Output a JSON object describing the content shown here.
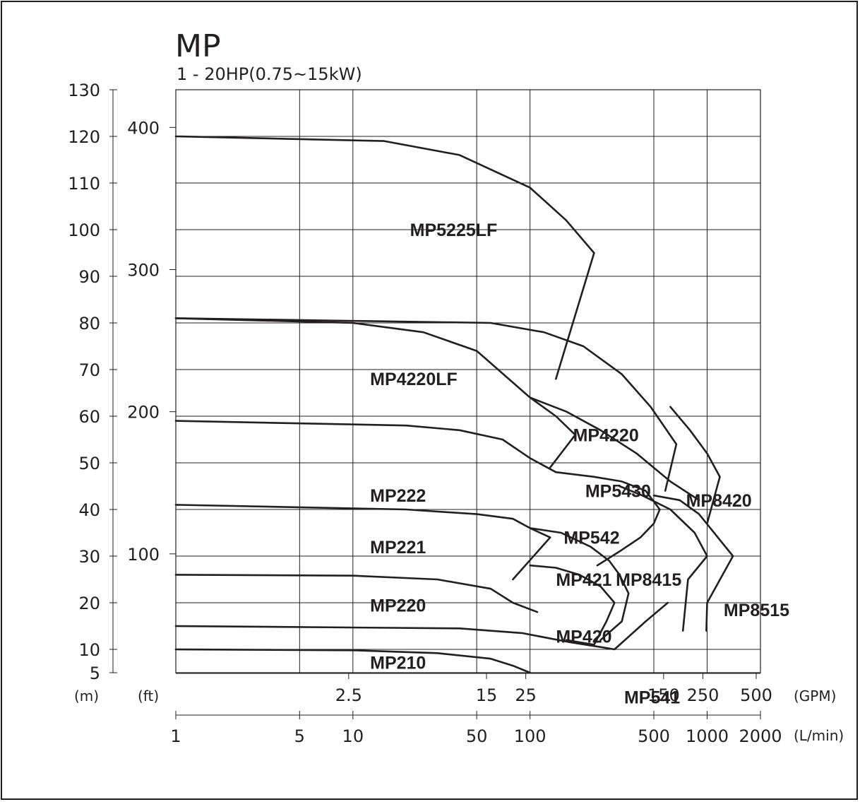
{
  "chart_data": {
    "type": "line",
    "title": "MP",
    "subtitle": "1 - 20HP(0.75~15kW)",
    "y_unit_m": "(m)",
    "y_unit_ft": "(ft)",
    "x_unit_gpm": "(GPM)",
    "x_unit_lmin": "(L/min)",
    "x_scale": "log",
    "grid": true,
    "xlim_lmin": [
      1,
      2000
    ],
    "ylim_m": [
      5,
      130
    ],
    "y_ticks_m": [
      "5",
      "10",
      "20",
      "30",
      "40",
      "50",
      "60",
      "70",
      "80",
      "90",
      "100",
      "110",
      "120",
      "130"
    ],
    "y_ticks_ft": [
      "100",
      "200",
      "300",
      "400"
    ],
    "x_ticks_lmin": [
      "1",
      "5",
      "10",
      "50",
      "100",
      "500",
      "1000",
      "2000"
    ],
    "x_ticks_gpm": [
      "2.5",
      "15",
      "25",
      "150",
      "250",
      "500"
    ],
    "series": [
      {
        "name": "MP5225LF",
        "x": [
          1,
          15,
          40,
          100,
          160,
          230,
          140
        ],
        "y": [
          120,
          119,
          116,
          109,
          102,
          95,
          68
        ]
      },
      {
        "name": "MP4220LF",
        "x": [
          1,
          10,
          25,
          50,
          100,
          140,
          180,
          130
        ],
        "y": [
          81,
          80,
          78,
          74,
          64,
          60,
          56,
          49
        ]
      },
      {
        "name": "MP4220",
        "x": [
          1,
          60,
          120,
          200,
          330,
          480,
          670,
          580
        ],
        "y": [
          81,
          80,
          78,
          75,
          69,
          62,
          54,
          44
        ]
      },
      {
        "name": "MP5430",
        "x": [
          100,
          160,
          250,
          400,
          620,
          900
        ],
        "y": [
          64,
          61,
          57,
          52,
          46,
          42
        ]
      },
      {
        "name": "MP8420",
        "x": [
          620,
          800,
          1000,
          1180,
          1000
        ],
        "y": [
          62,
          57,
          52,
          47,
          37
        ]
      },
      {
        "name": "MP222",
        "x": [
          1,
          20,
          40,
          70,
          100,
          140
        ],
        "y": [
          59,
          58,
          57,
          55,
          51,
          48
        ]
      },
      {
        "name": "MP542",
        "x": [
          140,
          230,
          330,
          450,
          540,
          500,
          420,
          320,
          240
        ],
        "y": [
          48,
          47,
          46,
          44,
          40,
          37,
          34,
          31,
          28
        ]
      },
      {
        "name": "MP221",
        "x": [
          1,
          20,
          50,
          80,
          100,
          130,
          80
        ],
        "y": [
          41,
          40,
          39,
          38,
          36,
          34,
          25
        ]
      },
      {
        "name": "MP8415",
        "x": [
          320,
          430,
          620,
          850,
          1000,
          780,
          730
        ],
        "y": [
          45,
          43,
          40,
          35,
          30,
          25,
          14
        ]
      },
      {
        "name": "MP8515",
        "x": [
          500,
          700,
          900,
          1150,
          1400,
          1000,
          990
        ],
        "y": [
          43,
          42,
          39,
          34,
          30,
          20,
          14
        ]
      },
      {
        "name": "MP421",
        "x": [
          100,
          150,
          220,
          280,
          320,
          360,
          330,
          250
        ],
        "y": [
          36,
          35,
          32,
          29,
          26,
          22,
          16,
          12
        ]
      },
      {
        "name": "MP220",
        "x": [
          1,
          10,
          30,
          60,
          80,
          110
        ],
        "y": [
          26,
          25.8,
          25,
          23,
          20,
          18
        ]
      },
      {
        "name": "MP420",
        "x": [
          100,
          140,
          190,
          250,
          300,
          270,
          230,
          160
        ],
        "y": [
          28,
          27.5,
          26,
          23.5,
          20,
          16,
          11,
          12
        ]
      },
      {
        "name": "MP210",
        "x": [
          1,
          10,
          30,
          60,
          80,
          100
        ],
        "y": [
          10,
          9.8,
          9.2,
          8,
          6.5,
          5
        ]
      },
      {
        "name": "MP541",
        "x": [
          1,
          40,
          90,
          170,
          250,
          300,
          450,
          600
        ],
        "y": [
          15,
          14.5,
          13.5,
          11.5,
          10.5,
          10,
          16,
          20
        ]
      }
    ],
    "labels": [
      {
        "text": "MP5225LF",
        "x": 21,
        "y": 100
      },
      {
        "text": "MP4220LF",
        "x": 12.5,
        "y": 68
      },
      {
        "text": "MP4220",
        "x": 175,
        "y": 56
      },
      {
        "text": "MP222",
        "x": 12.5,
        "y": 43
      },
      {
        "text": "MP5430",
        "x": 205,
        "y": 44
      },
      {
        "text": "MP8420",
        "x": 760,
        "y": 42
      },
      {
        "text": "MP542",
        "x": 155,
        "y": 34
      },
      {
        "text": "MP221",
        "x": 12.5,
        "y": 32
      },
      {
        "text": "MP421",
        "x": 140,
        "y": 25
      },
      {
        "text": "MP8415",
        "x": 305,
        "y": 25
      },
      {
        "text": "MP8515",
        "x": 1240,
        "y": 18.5
      },
      {
        "text": "MP220",
        "x": 12.5,
        "y": 19.5
      },
      {
        "text": "MP420",
        "x": 140,
        "y": 12.8
      },
      {
        "text": "MP210",
        "x": 12.5,
        "y": 7.2
      },
      {
        "text": "MP541",
        "x": 340,
        "y": -0.2
      }
    ]
  }
}
